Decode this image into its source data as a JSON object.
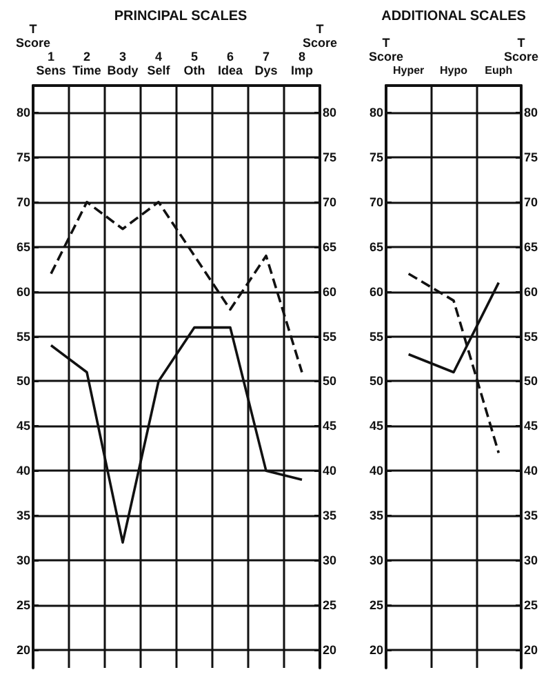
{
  "chart_data": [
    {
      "type": "line",
      "title": "PRINCIPAL SCALES",
      "ylabel": "T\nScore",
      "y2label": "T\nScore",
      "categories": [
        "1\nSens",
        "2\nTime",
        "3\nBody",
        "4\nSelf",
        "5\nOth",
        "6\nIdea",
        "7\nDys",
        "8\nImp"
      ],
      "series": [
        {
          "color": "#111111",
          "line_style": "dashed",
          "values": [
            62,
            70,
            67,
            70,
            64,
            58,
            64,
            51
          ]
        },
        {
          "color": "#111111",
          "line_style": "solid",
          "values": [
            54,
            51,
            32,
            50,
            56,
            56,
            40,
            39
          ]
        }
      ],
      "ylim": [
        18,
        83
      ],
      "yticks": [
        20,
        25,
        30,
        35,
        40,
        45,
        50,
        55,
        60,
        65,
        70,
        75,
        80
      ],
      "y2lim": [
        18,
        83
      ],
      "y2ticks": [
        20,
        25,
        30,
        35,
        40,
        45,
        50,
        55,
        60,
        65,
        70,
        75,
        80
      ],
      "grid": true,
      "marker": "none"
    },
    {
      "type": "line",
      "title": "ADDITIONAL SCALES",
      "ylabel": "T\nScore",
      "y2label": "T\nScore",
      "categories": [
        "Hyper",
        "Hypo",
        "Euph"
      ],
      "series": [
        {
          "color": "#111111",
          "line_style": "dashed",
          "values": [
            62,
            59,
            42
          ]
        },
        {
          "color": "#111111",
          "line_style": "solid",
          "values": [
            53,
            51,
            61
          ]
        }
      ],
      "ylim": [
        18,
        83
      ],
      "yticks": [
        20,
        25,
        30,
        35,
        40,
        45,
        50,
        55,
        60,
        65,
        70,
        75,
        80
      ],
      "y2lim": [
        18,
        83
      ],
      "y2ticks": [
        20,
        25,
        30,
        35,
        40,
        45,
        50,
        55,
        60,
        65,
        70,
        75,
        80
      ],
      "grid": true,
      "marker": "none"
    }
  ]
}
